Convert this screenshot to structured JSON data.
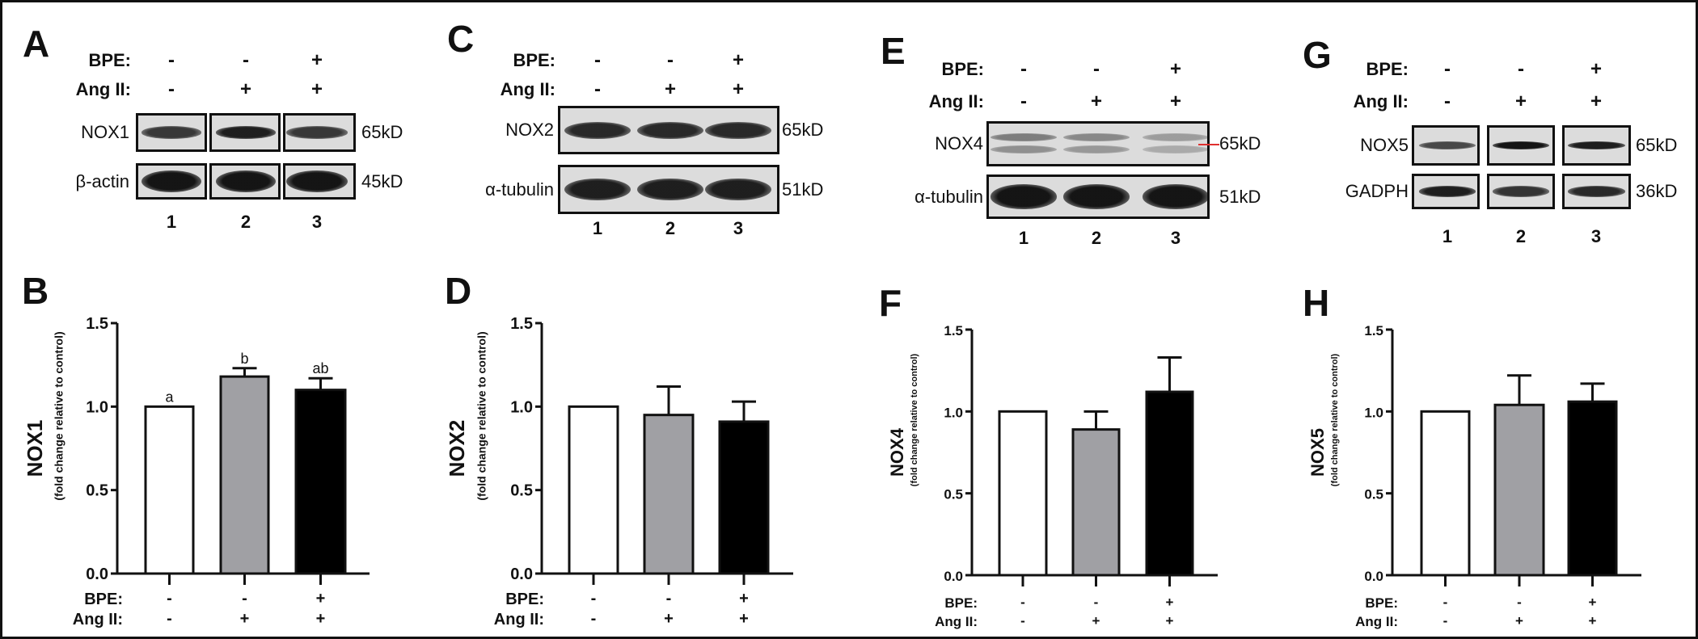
{
  "blots": [
    {
      "panel": "A",
      "cond_labels": [
        "BPE:",
        "Ang II:"
      ],
      "bpe": [
        "-",
        "-",
        "+"
      ],
      "ang": [
        "-",
        "+",
        "+"
      ],
      "rows": [
        {
          "label": "NOX1",
          "kd": "65kD"
        },
        {
          "label": "β-actin",
          "kd": "45kD"
        }
      ],
      "lanes": [
        "1",
        "2",
        "3"
      ]
    },
    {
      "panel": "C",
      "cond_labels": [
        "BPE:",
        "Ang II:"
      ],
      "bpe": [
        "-",
        "-",
        "+"
      ],
      "ang": [
        "-",
        "+",
        "+"
      ],
      "rows": [
        {
          "label": "NOX2",
          "kd": "65kD"
        },
        {
          "label": "α-tubulin",
          "kd": "51kD"
        }
      ],
      "lanes": [
        "1",
        "2",
        "3"
      ]
    },
    {
      "panel": "E",
      "cond_labels": [
        "BPE:",
        "Ang II:"
      ],
      "bpe": [
        "-",
        "-",
        "+"
      ],
      "ang": [
        "-",
        "+",
        "+"
      ],
      "rows": [
        {
          "label": "NOX4",
          "kd": "65kD"
        },
        {
          "label": "α-tubulin",
          "kd": "51kD"
        }
      ],
      "lanes": [
        "1",
        "2",
        "3"
      ],
      "arrow_color": "#e0302f"
    },
    {
      "panel": "G",
      "cond_labels": [
        "BPE:",
        "Ang II:"
      ],
      "bpe": [
        "-",
        "-",
        "+"
      ],
      "ang": [
        "-",
        "+",
        "+"
      ],
      "rows": [
        {
          "label": "NOX5",
          "kd": "65kD"
        },
        {
          "label": "GADPH",
          "kd": "36kD"
        }
      ],
      "lanes": [
        "1",
        "2",
        "3"
      ]
    }
  ],
  "chart_data": [
    {
      "type": "bar",
      "panel": "B",
      "ylabel": "NOX1",
      "ylabel_sub": "(fold change relative to control)",
      "ylim": [
        0,
        1.5
      ],
      "yticks": [
        "0.0",
        "0.5",
        "1.0",
        "1.5"
      ],
      "cond_labels": [
        "BPE:",
        "Ang II:"
      ],
      "bpe": [
        "-",
        "-",
        "+"
      ],
      "ang": [
        "-",
        "+",
        "+"
      ],
      "values": [
        1.0,
        1.18,
        1.1
      ],
      "error_upper": [
        1.0,
        1.23,
        1.17
      ],
      "sig_letters": [
        "a",
        "b",
        "ab"
      ],
      "bar_colors": [
        "#ffffff",
        "#a0a0a4",
        "#000000"
      ]
    },
    {
      "type": "bar",
      "panel": "D",
      "ylabel": "NOX2",
      "ylabel_sub": "(fold change relative to control)",
      "ylim": [
        0,
        1.5
      ],
      "yticks": [
        "0.0",
        "0.5",
        "1.0",
        "1.5"
      ],
      "cond_labels": [
        "BPE:",
        "Ang II:"
      ],
      "bpe": [
        "-",
        "-",
        "+"
      ],
      "ang": [
        "-",
        "+",
        "+"
      ],
      "values": [
        1.0,
        0.95,
        0.91
      ],
      "error_upper": [
        1.0,
        1.12,
        1.03
      ],
      "bar_colors": [
        "#ffffff",
        "#a0a0a4",
        "#000000"
      ]
    },
    {
      "type": "bar",
      "panel": "F",
      "ylabel": "NOX4",
      "ylabel_sub": "(fold change relative to control)",
      "ylim": [
        0,
        1.5
      ],
      "yticks": [
        "0.0",
        "0.5",
        "1.0",
        "1.5"
      ],
      "cond_labels": [
        "BPE:",
        "Ang II:"
      ],
      "bpe": [
        "-",
        "-",
        "+"
      ],
      "ang": [
        "-",
        "+",
        "+"
      ],
      "values": [
        1.0,
        0.89,
        1.12
      ],
      "error_upper": [
        1.0,
        1.0,
        1.33
      ],
      "bar_colors": [
        "#ffffff",
        "#a0a0a4",
        "#000000"
      ]
    },
    {
      "type": "bar",
      "panel": "H",
      "ylabel": "NOX5",
      "ylabel_sub": "(fold change relative to control)",
      "ylim": [
        0,
        1.5
      ],
      "yticks": [
        "0.0",
        "0.5",
        "1.0",
        "1.5"
      ],
      "cond_labels": [
        "BPE:",
        "Ang II:"
      ],
      "bpe": [
        "-",
        "-",
        "+"
      ],
      "ang": [
        "-",
        "+",
        "+"
      ],
      "values": [
        1.0,
        1.04,
        1.06
      ],
      "error_upper": [
        1.0,
        1.22,
        1.17
      ],
      "bar_colors": [
        "#ffffff",
        "#a0a0a4",
        "#000000"
      ]
    }
  ]
}
